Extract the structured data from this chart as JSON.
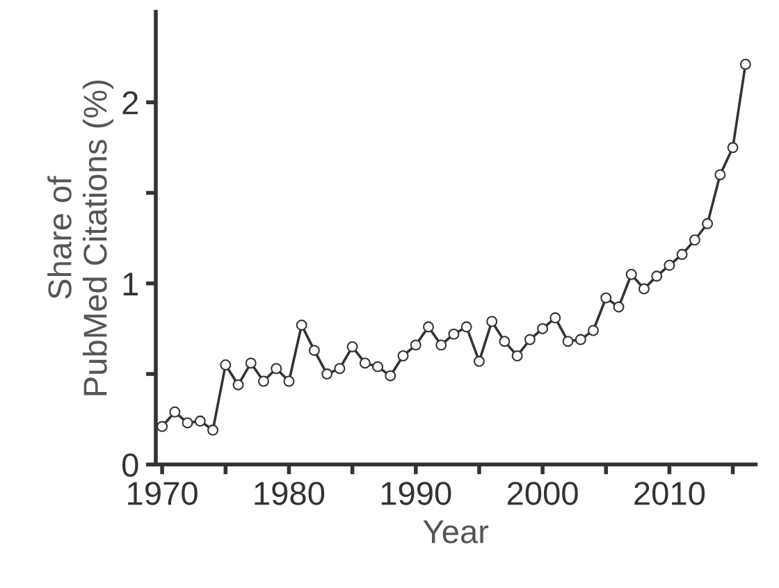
{
  "chart_data": {
    "type": "line",
    "xlabel": "Year",
    "ylabel": "Share of\nPubMed Citations (%)",
    "x": [
      1970,
      1971,
      1972,
      1973,
      1974,
      1975,
      1976,
      1977,
      1978,
      1979,
      1980,
      1981,
      1982,
      1983,
      1984,
      1985,
      1986,
      1987,
      1988,
      1989,
      1990,
      1991,
      1992,
      1993,
      1994,
      1995,
      1996,
      1997,
      1998,
      1999,
      2000,
      2001,
      2002,
      2003,
      2004,
      2005,
      2006,
      2007,
      2008,
      2009,
      2010,
      2011,
      2012,
      2013,
      2014,
      2015,
      2016
    ],
    "series": [
      {
        "color": "#333333",
        "values": [
          0.21,
          0.29,
          0.23,
          0.24,
          0.19,
          0.55,
          0.44,
          0.56,
          0.46,
          0.53,
          0.46,
          0.77,
          0.63,
          0.5,
          0.53,
          0.65,
          0.56,
          0.54,
          0.49,
          0.6,
          0.66,
          0.76,
          0.66,
          0.72,
          0.76,
          0.57,
          0.79,
          0.68,
          0.6,
          0.69,
          0.75,
          0.81,
          0.68,
          0.69,
          0.74,
          0.92,
          0.87,
          1.05,
          0.97,
          1.04,
          1.1,
          1.16,
          1.24,
          1.33,
          1.6,
          1.75,
          2.21
        ]
      }
    ],
    "xlim": [
      1969.5,
      2016.8
    ],
    "ylim": [
      0,
      2.5
    ],
    "xticks": [
      1970,
      {
        "value": 1975,
        "label": null
      },
      1980,
      {
        "value": 1985,
        "label": null
      },
      1990,
      {
        "value": 1995,
        "label": null
      },
      2000,
      {
        "value": 2005,
        "label": null
      },
      2010,
      {
        "value": 2015,
        "label": null
      }
    ],
    "yticks": [
      0,
      {
        "value": 0.5,
        "label": null
      },
      1,
      {
        "value": 1.5,
        "label": null
      },
      2
    ],
    "marker": "circle",
    "line_style": "solid",
    "grid": false,
    "legend": false
  }
}
